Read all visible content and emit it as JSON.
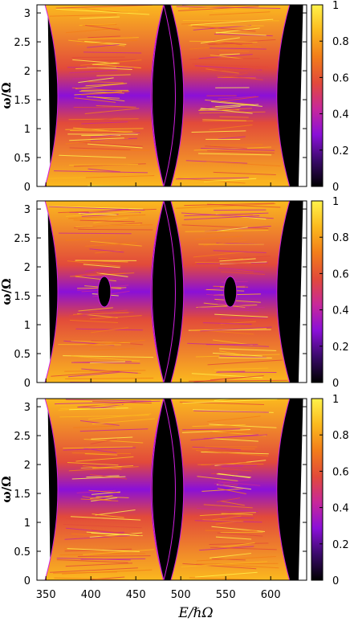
{
  "colors": {
    "background_region": "#000000",
    "boundary": "#d020e0",
    "colormap": [
      "#000000",
      "#3a0a6a",
      "#8a10d8",
      "#c8289a",
      "#e24a3a",
      "#f27d1a",
      "#fbb91e",
      "#fff24a"
    ]
  },
  "chart_data": [
    {
      "type": "heatmap",
      "panel": "top",
      "ylabel": "ω/Ω",
      "xlim": [
        340,
        640
      ],
      "ylim": [
        0,
        3.14
      ],
      "yticks": [
        "0",
        "0.5",
        "1",
        "1.5",
        "2",
        "2.5",
        "3"
      ],
      "colorbar_ticks": [
        "0",
        "0.2",
        "0.4",
        "0.6",
        "0.8",
        "1"
      ],
      "colorbar_range": [
        0,
        1
      ],
      "has_inner_gap": false
    },
    {
      "type": "heatmap",
      "panel": "middle",
      "ylabel": "ω/Ω",
      "xlim": [
        340,
        640
      ],
      "ylim": [
        0,
        3.14
      ],
      "yticks": [
        "0",
        "0.5",
        "1",
        "1.5",
        "2",
        "2.5",
        "3"
      ],
      "colorbar_ticks": [
        "0",
        "0.2",
        "0.4",
        "0.6",
        "0.8",
        "1"
      ],
      "colorbar_range": [
        0,
        1
      ],
      "has_inner_gap": true
    },
    {
      "type": "heatmap",
      "panel": "bottom",
      "ylabel": "ω/Ω",
      "xlabel": "E/ℏΩ",
      "xlim": [
        340,
        640
      ],
      "ylim": [
        0,
        3.14
      ],
      "xticks": [
        "350",
        "400",
        "450",
        "500",
        "550",
        "600"
      ],
      "yticks": [
        "0",
        "0.5",
        "1",
        "1.5",
        "2",
        "2.5",
        "3"
      ],
      "colorbar_ticks": [
        "0",
        "0.2",
        "0.4",
        "0.6",
        "0.8",
        "1"
      ],
      "colorbar_range": [
        0,
        1
      ],
      "has_inner_gap": false
    }
  ]
}
